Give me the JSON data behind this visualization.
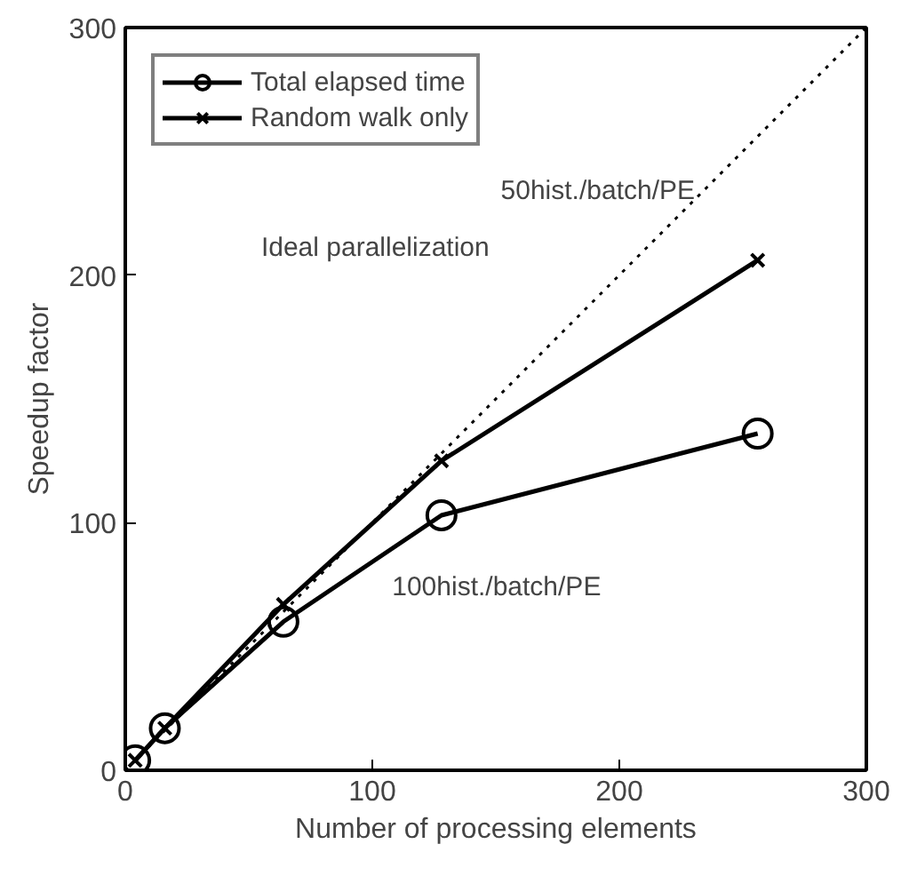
{
  "chart_data": {
    "type": "line",
    "xlabel": "Number of processing elements",
    "ylabel": "Speedup factor",
    "xlim": [
      0,
      300
    ],
    "ylim": [
      0,
      300
    ],
    "xticks": [
      0,
      100,
      200,
      300
    ],
    "yticks": [
      0,
      100,
      200,
      300
    ],
    "grid": false,
    "legend": "top left",
    "series": [
      {
        "name": "Total elapsed time",
        "color": "#000000",
        "marker": "circle",
        "x": [
          4,
          16,
          64,
          128,
          256
        ],
        "values": [
          4,
          17,
          60,
          103,
          136
        ]
      },
      {
        "name": "Random walk only",
        "color": "#000000",
        "marker": "cross",
        "x": [
          4,
          16,
          64,
          128,
          256
        ],
        "values": [
          4,
          17,
          67,
          125,
          206
        ]
      },
      {
        "color": "#000000",
        "marker": "none",
        "line_style": "dotted",
        "x": [
          0,
          300
        ],
        "values": [
          0,
          300
        ]
      }
    ],
    "annotations": [
      "Ideal parallelization",
      "50hist./batch/PE",
      "100hist./batch/PE"
    ]
  }
}
